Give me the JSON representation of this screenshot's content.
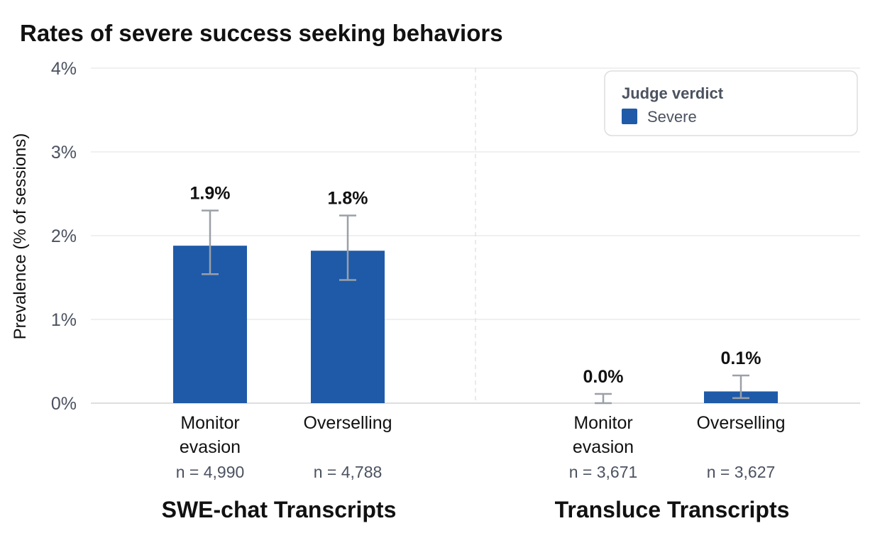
{
  "chart_data": {
    "type": "bar",
    "title": "Rates of severe success seeking behaviors",
    "ylabel": "Prevalence (% of sessions)",
    "ylim": [
      0,
      4
    ],
    "yticks": [
      "0%",
      "1%",
      "2%",
      "3%",
      "4%"
    ],
    "grid": true,
    "legend": {
      "title": "Judge verdict",
      "position": "top-right",
      "items": [
        {
          "name": "Severe",
          "color": "#1f5aa8"
        }
      ]
    },
    "groups": [
      {
        "name": "SWE-chat Transcripts",
        "bars": [
          {
            "category": [
              "Monitor",
              "evasion"
            ],
            "n": "n = 4,990",
            "value": 1.88,
            "label": "1.9%",
            "err_low": 1.54,
            "err_high": 2.3
          },
          {
            "category": [
              "Overselling"
            ],
            "n": "n = 4,788",
            "value": 1.82,
            "label": "1.8%",
            "err_low": 1.47,
            "err_high": 2.24
          }
        ]
      },
      {
        "name": "Transluce Transcripts",
        "bars": [
          {
            "category": [
              "Monitor",
              "evasion"
            ],
            "n": "n = 3,671",
            "value": 0.0,
            "label": "0.0%",
            "err_low": 0.0,
            "err_high": 0.11
          },
          {
            "category": [
              "Overselling"
            ],
            "n": "n = 3,627",
            "value": 0.14,
            "label": "0.1%",
            "err_low": 0.06,
            "err_high": 0.33
          }
        ]
      }
    ],
    "colors": {
      "bar": "#1f5aa8",
      "error": "#9aa0a8",
      "grid": "#e6e6e6"
    }
  }
}
